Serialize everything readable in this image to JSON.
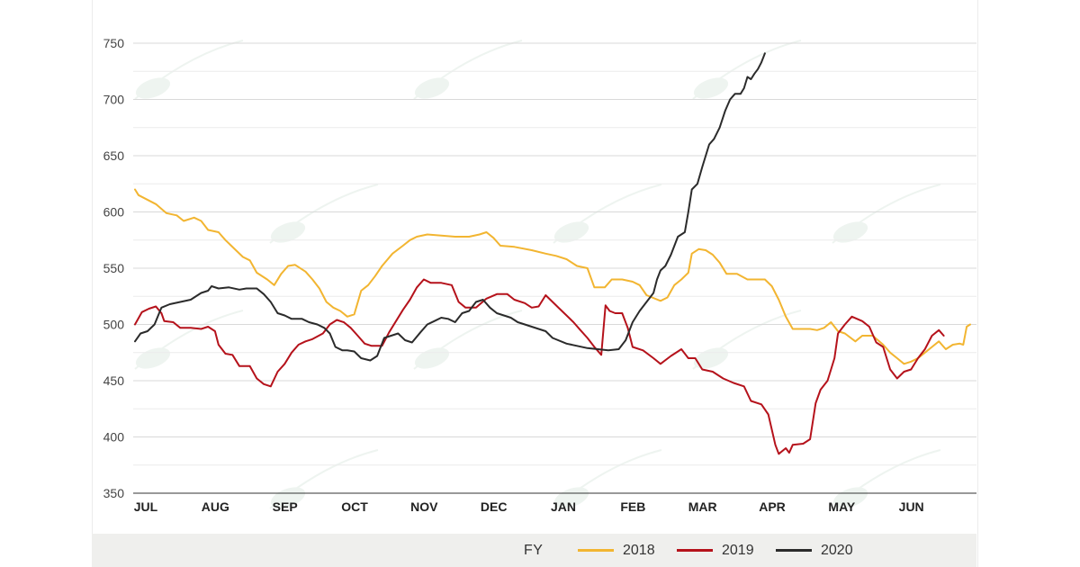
{
  "chart_data": {
    "type": "line",
    "ylim": [
      350,
      750
    ],
    "yticks": [
      350,
      400,
      450,
      500,
      550,
      600,
      650,
      700,
      750
    ],
    "months": [
      "JUL",
      "AUG",
      "SEP",
      "OCT",
      "NOV",
      "DEC",
      "JAN",
      "FEB",
      "MAR",
      "APR",
      "MAY",
      "JUN"
    ],
    "xlim": [
      0,
      12
    ],
    "grid": "horizontal",
    "legend_position": "bottom",
    "legend_title": "FY",
    "series": [
      {
        "name": "2018",
        "color": "#f2b531",
        "points": [
          [
            0.0,
            620
          ],
          [
            0.05,
            615
          ],
          [
            0.3,
            607
          ],
          [
            0.45,
            599
          ],
          [
            0.6,
            597
          ],
          [
            0.7,
            592
          ],
          [
            0.85,
            595
          ],
          [
            0.95,
            592
          ],
          [
            1.05,
            584
          ],
          [
            1.2,
            582
          ],
          [
            1.3,
            575
          ],
          [
            1.45,
            566
          ],
          [
            1.55,
            560
          ],
          [
            1.65,
            557
          ],
          [
            1.75,
            546
          ],
          [
            1.9,
            540
          ],
          [
            2.0,
            535
          ],
          [
            2.1,
            545
          ],
          [
            2.2,
            552
          ],
          [
            2.3,
            553
          ],
          [
            2.45,
            547
          ],
          [
            2.55,
            540
          ],
          [
            2.65,
            532
          ],
          [
            2.75,
            520
          ],
          [
            2.85,
            515
          ],
          [
            2.95,
            512
          ],
          [
            3.05,
            507
          ],
          [
            3.15,
            509
          ],
          [
            3.25,
            530
          ],
          [
            3.35,
            535
          ],
          [
            3.45,
            543
          ],
          [
            3.55,
            552
          ],
          [
            3.7,
            563
          ],
          [
            3.85,
            570
          ],
          [
            3.95,
            575
          ],
          [
            4.05,
            578
          ],
          [
            4.2,
            580
          ],
          [
            4.4,
            579
          ],
          [
            4.6,
            578
          ],
          [
            4.8,
            578
          ],
          [
            4.95,
            580
          ],
          [
            5.05,
            582
          ],
          [
            5.15,
            577
          ],
          [
            5.25,
            570
          ],
          [
            5.45,
            569
          ],
          [
            5.7,
            566
          ],
          [
            5.9,
            563
          ],
          [
            6.05,
            561
          ],
          [
            6.2,
            558
          ],
          [
            6.35,
            552
          ],
          [
            6.5,
            550
          ],
          [
            6.6,
            533
          ],
          [
            6.75,
            533
          ],
          [
            6.85,
            540
          ],
          [
            7.0,
            540
          ],
          [
            7.15,
            538
          ],
          [
            7.25,
            535
          ],
          [
            7.35,
            526
          ],
          [
            7.55,
            521
          ],
          [
            7.65,
            524
          ],
          [
            7.75,
            535
          ],
          [
            7.85,
            540
          ],
          [
            7.95,
            546
          ],
          [
            8.0,
            563
          ],
          [
            8.1,
            567
          ],
          [
            8.2,
            566
          ],
          [
            8.3,
            562
          ],
          [
            8.4,
            555
          ],
          [
            8.5,
            545
          ],
          [
            8.65,
            545
          ],
          [
            8.8,
            540
          ],
          [
            8.95,
            540
          ],
          [
            9.05,
            540
          ],
          [
            9.15,
            534
          ],
          [
            9.25,
            522
          ],
          [
            9.35,
            507
          ],
          [
            9.45,
            496
          ],
          [
            9.55,
            496
          ],
          [
            9.7,
            496
          ],
          [
            9.8,
            495
          ],
          [
            9.9,
            497
          ],
          [
            10.0,
            502
          ],
          [
            10.1,
            494
          ],
          [
            10.2,
            492
          ],
          [
            10.35,
            485
          ],
          [
            10.45,
            490
          ],
          [
            10.6,
            490
          ],
          [
            10.75,
            482
          ],
          [
            10.85,
            475
          ],
          [
            10.95,
            470
          ],
          [
            11.05,
            465
          ],
          [
            11.15,
            467
          ],
          [
            11.25,
            470
          ],
          [
            11.35,
            475
          ],
          [
            11.45,
            480
          ],
          [
            11.55,
            485
          ],
          [
            11.65,
            478
          ],
          [
            11.75,
            482
          ],
          [
            11.85,
            483
          ],
          [
            11.9,
            482
          ],
          [
            11.95,
            498
          ],
          [
            12.0,
            500
          ]
        ]
      },
      {
        "name": "2019",
        "color": "#b5121b",
        "points": [
          [
            0.0,
            500
          ],
          [
            0.1,
            511
          ],
          [
            0.2,
            514
          ],
          [
            0.3,
            516
          ],
          [
            0.38,
            510
          ],
          [
            0.42,
            503
          ],
          [
            0.55,
            502
          ],
          [
            0.65,
            497
          ],
          [
            0.8,
            497
          ],
          [
            0.95,
            496
          ],
          [
            1.05,
            498
          ],
          [
            1.15,
            494
          ],
          [
            1.2,
            482
          ],
          [
            1.3,
            474
          ],
          [
            1.4,
            473
          ],
          [
            1.5,
            463
          ],
          [
            1.65,
            463
          ],
          [
            1.75,
            452
          ],
          [
            1.85,
            447
          ],
          [
            1.95,
            445
          ],
          [
            2.05,
            458
          ],
          [
            2.15,
            465
          ],
          [
            2.25,
            475
          ],
          [
            2.35,
            482
          ],
          [
            2.45,
            485
          ],
          [
            2.55,
            487
          ],
          [
            2.7,
            492
          ],
          [
            2.8,
            500
          ],
          [
            2.9,
            504
          ],
          [
            3.0,
            502
          ],
          [
            3.1,
            497
          ],
          [
            3.2,
            490
          ],
          [
            3.3,
            483
          ],
          [
            3.4,
            481
          ],
          [
            3.55,
            481
          ],
          [
            3.65,
            493
          ],
          [
            3.75,
            503
          ],
          [
            3.85,
            513
          ],
          [
            3.95,
            522
          ],
          [
            4.05,
            533
          ],
          [
            4.15,
            540
          ],
          [
            4.25,
            537
          ],
          [
            4.4,
            537
          ],
          [
            4.55,
            535
          ],
          [
            4.65,
            520
          ],
          [
            4.75,
            515
          ],
          [
            4.9,
            515
          ],
          [
            5.05,
            523
          ],
          [
            5.2,
            527
          ],
          [
            5.35,
            527
          ],
          [
            5.45,
            522
          ],
          [
            5.6,
            519
          ],
          [
            5.7,
            515
          ],
          [
            5.8,
            516
          ],
          [
            5.9,
            526
          ],
          [
            6.0,
            520
          ],
          [
            6.1,
            514
          ],
          [
            6.2,
            508
          ],
          [
            6.3,
            502
          ],
          [
            6.4,
            495
          ],
          [
            6.5,
            488
          ],
          [
            6.6,
            480
          ],
          [
            6.7,
            473
          ],
          [
            6.76,
            517
          ],
          [
            6.82,
            512
          ],
          [
            6.9,
            510
          ],
          [
            7.0,
            510
          ],
          [
            7.08,
            497
          ],
          [
            7.15,
            480
          ],
          [
            7.3,
            477
          ],
          [
            7.45,
            470
          ],
          [
            7.55,
            465
          ],
          [
            7.7,
            472
          ],
          [
            7.85,
            478
          ],
          [
            7.95,
            470
          ],
          [
            8.05,
            470
          ],
          [
            8.15,
            460
          ],
          [
            8.3,
            458
          ],
          [
            8.45,
            452
          ],
          [
            8.6,
            448
          ],
          [
            8.75,
            445
          ],
          [
            8.85,
            432
          ],
          [
            9.0,
            429
          ],
          [
            9.1,
            420
          ],
          [
            9.2,
            393
          ],
          [
            9.25,
            385
          ],
          [
            9.35,
            390
          ],
          [
            9.4,
            386
          ],
          [
            9.45,
            393
          ],
          [
            9.6,
            394
          ],
          [
            9.7,
            398
          ],
          [
            9.78,
            430
          ],
          [
            9.85,
            442
          ],
          [
            9.95,
            450
          ],
          [
            10.05,
            470
          ],
          [
            10.1,
            492
          ],
          [
            10.2,
            500
          ],
          [
            10.3,
            507
          ],
          [
            10.45,
            503
          ],
          [
            10.55,
            498
          ],
          [
            10.65,
            484
          ],
          [
            10.75,
            480
          ],
          [
            10.85,
            460
          ],
          [
            10.95,
            452
          ],
          [
            11.05,
            458
          ],
          [
            11.15,
            460
          ],
          [
            11.25,
            470
          ],
          [
            11.35,
            478
          ],
          [
            11.45,
            490
          ],
          [
            11.55,
            495
          ],
          [
            11.62,
            490
          ]
        ]
      },
      {
        "name": "2020",
        "color": "#2b2b2b",
        "points": [
          [
            0.0,
            485
          ],
          [
            0.08,
            492
          ],
          [
            0.18,
            494
          ],
          [
            0.28,
            500
          ],
          [
            0.38,
            515
          ],
          [
            0.5,
            518
          ],
          [
            0.65,
            520
          ],
          [
            0.8,
            522
          ],
          [
            0.95,
            528
          ],
          [
            1.05,
            530
          ],
          [
            1.1,
            534
          ],
          [
            1.2,
            532
          ],
          [
            1.35,
            533
          ],
          [
            1.5,
            531
          ],
          [
            1.6,
            532
          ],
          [
            1.75,
            532
          ],
          [
            1.85,
            527
          ],
          [
            1.95,
            520
          ],
          [
            2.05,
            510
          ],
          [
            2.15,
            508
          ],
          [
            2.25,
            505
          ],
          [
            2.4,
            505
          ],
          [
            2.5,
            502
          ],
          [
            2.62,
            500
          ],
          [
            2.72,
            497
          ],
          [
            2.8,
            492
          ],
          [
            2.88,
            480
          ],
          [
            2.98,
            477
          ],
          [
            3.05,
            477
          ],
          [
            3.15,
            476
          ],
          [
            3.25,
            470
          ],
          [
            3.38,
            468
          ],
          [
            3.48,
            472
          ],
          [
            3.58,
            488
          ],
          [
            3.68,
            490
          ],
          [
            3.78,
            492
          ],
          [
            3.88,
            486
          ],
          [
            3.98,
            484
          ],
          [
            4.1,
            493
          ],
          [
            4.2,
            500
          ],
          [
            4.3,
            503
          ],
          [
            4.4,
            506
          ],
          [
            4.5,
            505
          ],
          [
            4.6,
            502
          ],
          [
            4.7,
            510
          ],
          [
            4.8,
            512
          ],
          [
            4.9,
            520
          ],
          [
            5.0,
            522
          ],
          [
            5.1,
            515
          ],
          [
            5.2,
            510
          ],
          [
            5.3,
            508
          ],
          [
            5.4,
            506
          ],
          [
            5.5,
            502
          ],
          [
            5.6,
            500
          ],
          [
            5.7,
            498
          ],
          [
            5.8,
            496
          ],
          [
            5.9,
            494
          ],
          [
            6.0,
            488
          ],
          [
            6.2,
            483
          ],
          [
            6.5,
            479
          ],
          [
            6.8,
            477
          ],
          [
            6.95,
            478
          ],
          [
            7.05,
            486
          ],
          [
            7.15,
            502
          ],
          [
            7.25,
            512
          ],
          [
            7.35,
            520
          ],
          [
            7.45,
            528
          ],
          [
            7.5,
            540
          ],
          [
            7.55,
            548
          ],
          [
            7.62,
            552
          ],
          [
            7.7,
            562
          ],
          [
            7.8,
            578
          ],
          [
            7.9,
            582
          ],
          [
            7.95,
            600
          ],
          [
            8.0,
            620
          ],
          [
            8.08,
            625
          ],
          [
            8.15,
            640
          ],
          [
            8.25,
            660
          ],
          [
            8.32,
            665
          ],
          [
            8.4,
            675
          ],
          [
            8.48,
            690
          ],
          [
            8.55,
            700
          ],
          [
            8.62,
            705
          ],
          [
            8.7,
            705
          ],
          [
            8.75,
            710
          ],
          [
            8.8,
            720
          ],
          [
            8.85,
            718
          ],
          [
            8.9,
            723
          ],
          [
            8.95,
            727
          ],
          [
            9.0,
            733
          ],
          [
            9.05,
            741
          ]
        ]
      }
    ]
  }
}
